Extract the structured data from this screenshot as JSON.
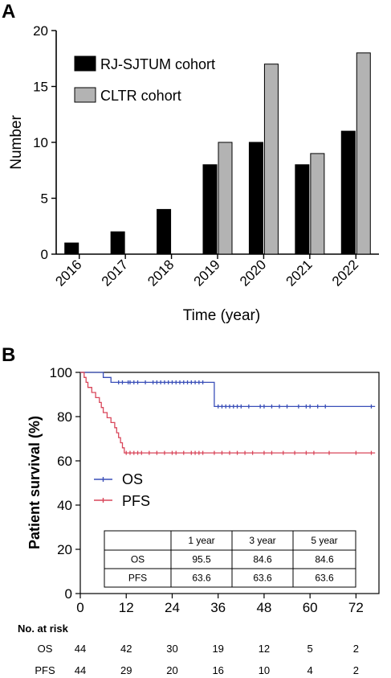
{
  "chart_data": [
    {
      "panel": "A",
      "type": "bar",
      "categories": [
        "2016",
        "2017",
        "2018",
        "2019",
        "2020",
        "2021",
        "2022"
      ],
      "series": [
        {
          "name": "RJ-SJTUM cohort",
          "color": "#000000",
          "values": [
            1,
            2,
            4,
            8,
            10,
            8,
            11
          ]
        },
        {
          "name": "CLTR cohort",
          "color": "#b3b3b3",
          "values": [
            null,
            null,
            null,
            10,
            17,
            9,
            18
          ]
        }
      ],
      "xlabel": "Time (year)",
      "ylabel": "Number",
      "ylim": [
        0,
        20
      ],
      "yticks": [
        "0",
        "5",
        "10",
        "15",
        "20"
      ],
      "legend_position": "top-left",
      "grid": false
    },
    {
      "panel": "B",
      "type": "line",
      "xlabel": "",
      "ylabel": "Patient survival (%)",
      "xlim": [
        0,
        78
      ],
      "ylim": [
        0,
        100
      ],
      "xticks": [
        "0",
        "12",
        "24",
        "36",
        "48",
        "60",
        "72"
      ],
      "yticks": [
        "0",
        "20",
        "40",
        "60",
        "80",
        "100"
      ],
      "legend_position": "middle-left",
      "grid": false,
      "series": [
        {
          "name": "OS",
          "color": "#3a4fb8",
          "steps": [
            [
              0,
              100
            ],
            [
              6,
              100
            ],
            [
              6,
              97.7
            ],
            [
              8,
              97.7
            ],
            [
              8,
              95.5
            ],
            [
              35,
              95.5
            ],
            [
              35,
              84.6
            ],
            [
              77,
              84.6
            ]
          ],
          "censored_x": [
            10,
            11,
            12.5,
            13,
            14,
            15,
            17,
            19,
            20,
            21,
            22,
            23,
            24,
            25,
            26,
            27,
            28,
            29,
            30,
            31,
            32,
            36,
            37,
            38,
            39,
            40,
            41,
            42,
            44,
            47,
            48,
            50,
            52,
            54,
            57,
            59,
            60,
            62,
            64,
            76
          ]
        },
        {
          "name": "PFS",
          "color": "#d9465a",
          "steps": [
            [
              0,
              100
            ],
            [
              1,
              100
            ],
            [
              1,
              97.7
            ],
            [
              1.5,
              97.7
            ],
            [
              1.5,
              95.5
            ],
            [
              2,
              95.5
            ],
            [
              2,
              93.2
            ],
            [
              3,
              93.2
            ],
            [
              3,
              90.9
            ],
            [
              4,
              90.9
            ],
            [
              4,
              88.6
            ],
            [
              5,
              88.6
            ],
            [
              5,
              86.4
            ],
            [
              5.5,
              86.4
            ],
            [
              5.5,
              84.1
            ],
            [
              6,
              84.1
            ],
            [
              6,
              81.8
            ],
            [
              7,
              81.8
            ],
            [
              7,
              79.5
            ],
            [
              8,
              79.5
            ],
            [
              8,
              77.3
            ],
            [
              9,
              77.3
            ],
            [
              9,
              75.0
            ],
            [
              9.5,
              75.0
            ],
            [
              9.5,
              72.7
            ],
            [
              10,
              72.7
            ],
            [
              10,
              70.5
            ],
            [
              10.5,
              70.5
            ],
            [
              10.5,
              68.2
            ],
            [
              11,
              68.2
            ],
            [
              11,
              65.9
            ],
            [
              11.5,
              65.9
            ],
            [
              11.5,
              63.6
            ],
            [
              77,
              63.6
            ]
          ],
          "censored_x": [
            12,
            13,
            14,
            15,
            16,
            18,
            20,
            22,
            24,
            25,
            27,
            29,
            30,
            31,
            32,
            35,
            37,
            39,
            41,
            43,
            45,
            48,
            50,
            53,
            56,
            59,
            61,
            65,
            72,
            76
          ]
        }
      ],
      "table": {
        "headers": [
          "",
          "1 year",
          "3 year",
          "5 year"
        ],
        "rows": [
          [
            "OS",
            "95.5",
            "84.6",
            "84.6"
          ],
          [
            "PFS",
            "63.6",
            "63.6",
            "63.6"
          ]
        ]
      },
      "risk_table": {
        "title": "No. at risk",
        "rows": [
          {
            "label": "OS",
            "values": [
              "44",
              "42",
              "30",
              "19",
              "12",
              "5",
              "2"
            ]
          },
          {
            "label": "PFS",
            "values": [
              "44",
              "29",
              "20",
              "16",
              "10",
              "4",
              "2"
            ]
          }
        ]
      }
    }
  ],
  "panels": {
    "a": "A",
    "b": "B"
  }
}
